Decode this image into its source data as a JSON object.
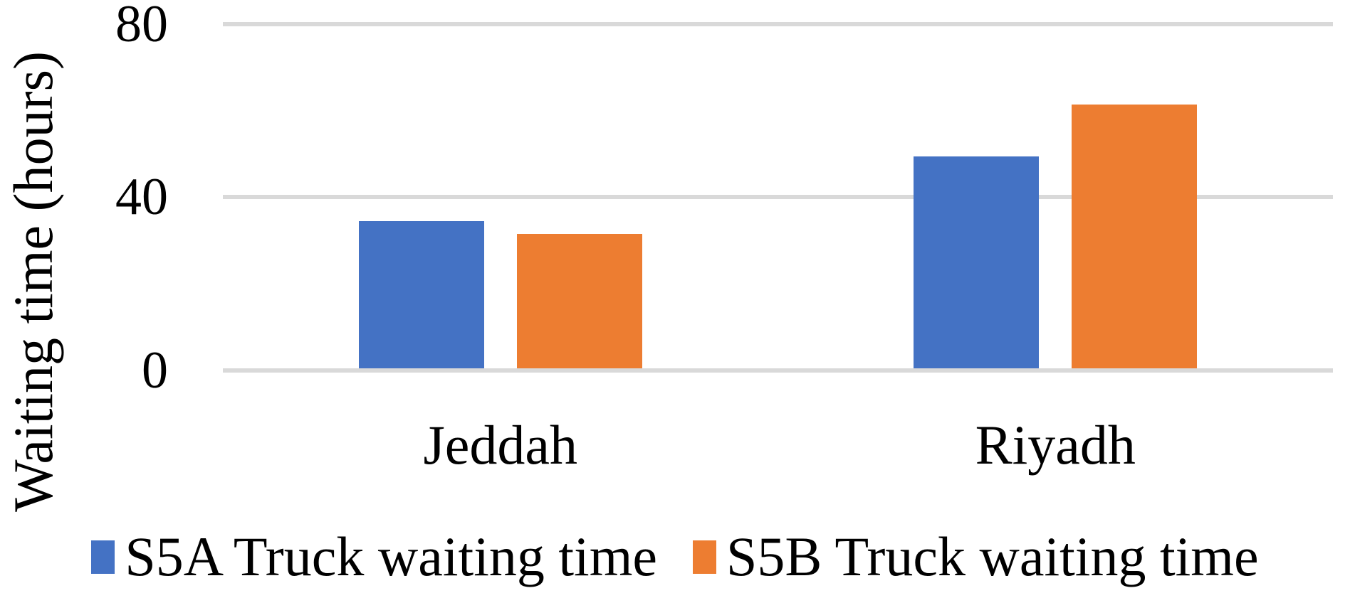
{
  "chart_data": {
    "type": "bar",
    "title": "",
    "categories": [
      "Jeddah",
      "Riyadh"
    ],
    "series": [
      {
        "name": "S5A Truck waiting time",
        "color": "#4472C4",
        "values": [
          34,
          49
        ]
      },
      {
        "name": "S5B Truck waiting time",
        "color": "#ED7D31",
        "values": [
          31,
          61
        ]
      }
    ],
    "xlabel": "",
    "ylabel": "Waiting time (hours)",
    "ylim": [
      0,
      80
    ],
    "yticks": [
      0,
      40,
      80
    ],
    "grid": "horizontal",
    "legend_position": "bottom",
    "gridline_color": "#D9D9D9",
    "text_color": "#000000",
    "background_color": "#FFFFFF"
  }
}
